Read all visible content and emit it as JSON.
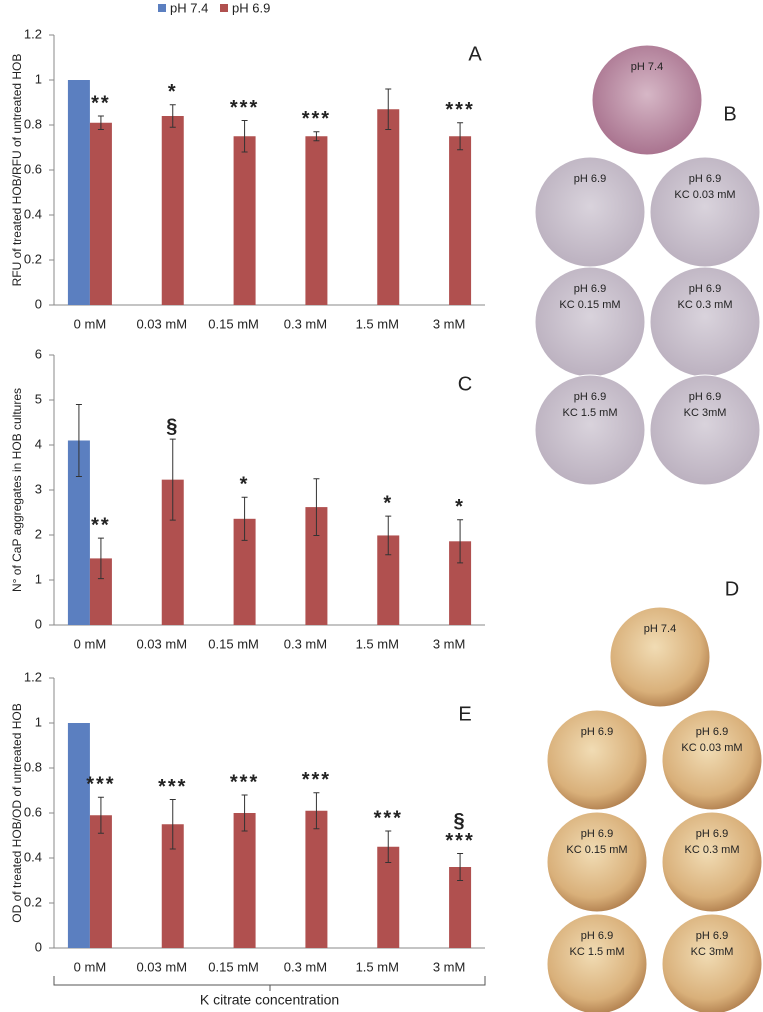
{
  "chart_data": [
    {
      "type": "bar",
      "panel_label": "A",
      "ylabel": "RFU of treated HOB/RFU of untreated HOB",
      "categories": [
        "0 mM",
        "0.03 mM",
        "0.15 mM",
        "0.3 mM",
        "1.5 mM",
        "3 mM"
      ],
      "series": [
        {
          "name": "pH 7.4",
          "color": "#5b7fc0",
          "values": [
            1,
            null,
            null,
            null,
            null,
            null
          ]
        },
        {
          "name": "pH 6.9",
          "color": "#b0504f",
          "values": [
            0.81,
            0.84,
            0.75,
            0.75,
            0.87,
            0.75
          ],
          "errors": [
            0.03,
            0.05,
            0.07,
            0.02,
            0.09,
            0.06
          ]
        }
      ],
      "annotations": [
        [
          "**"
        ],
        [
          "*"
        ],
        [
          "***"
        ],
        [
          "***"
        ],
        null,
        [
          "***"
        ]
      ],
      "ylim": [
        0,
        1.2
      ],
      "yticks": [
        0,
        0.2,
        0.4,
        0.6,
        0.8,
        1,
        1.2
      ]
    },
    {
      "type": "bar",
      "panel_label": "C",
      "ylabel": "N° of CaP aggregates in HOB cultures",
      "categories": [
        "0 mM",
        "0.03 mM",
        "0.15 mM",
        "0.3 mM",
        "1.5 mM",
        "3 mM"
      ],
      "series": [
        {
          "color": "#5b7fc0",
          "values": [
            4.1,
            null,
            null,
            null,
            null,
            null
          ],
          "errors": [
            0.8,
            null,
            null,
            null,
            null,
            null
          ]
        },
        {
          "color": "#b0504f",
          "values": [
            1.48,
            3.23,
            2.36,
            2.62,
            1.99,
            1.86
          ],
          "errors": [
            0.45,
            0.9,
            0.48,
            0.63,
            0.43,
            0.48
          ]
        }
      ],
      "annotations": [
        [
          "**"
        ],
        [
          "§"
        ],
        [
          "*"
        ],
        null,
        [
          "*"
        ],
        [
          "*"
        ]
      ],
      "ylim": [
        0,
        6
      ],
      "yticks": [
        0,
        1,
        2,
        3,
        4,
        5,
        6
      ]
    },
    {
      "type": "bar",
      "panel_label": "E",
      "ylabel": "OD of treated HOB/OD of untreated HOB",
      "xlabel": "K citrate concentration",
      "categories": [
        "0 mM",
        "0.03 mM",
        "0.15 mM",
        "0.3 mM",
        "1.5 mM",
        "3 mM"
      ],
      "series": [
        {
          "color": "#5b7fc0",
          "values": [
            1,
            null,
            null,
            null,
            null,
            null
          ]
        },
        {
          "color": "#b0504f",
          "values": [
            0.59,
            0.55,
            0.6,
            0.61,
            0.45,
            0.36
          ],
          "errors": [
            0.08,
            0.11,
            0.08,
            0.08,
            0.07,
            0.06
          ]
        }
      ],
      "annotations": [
        [
          "***"
        ],
        [
          "***"
        ],
        [
          "***"
        ],
        [
          "***"
        ],
        [
          "***"
        ],
        [
          "§",
          "***"
        ]
      ],
      "ylim": [
        0,
        1.2
      ],
      "yticks": [
        0,
        0.2,
        0.4,
        0.6,
        0.8,
        1,
        1.2
      ]
    }
  ],
  "micrographs": [
    {
      "panel": "B",
      "images": [
        [
          "pH 7.4"
        ],
        [
          "pH 6.9"
        ],
        [
          "pH 6.9",
          "KC 0.03 mM"
        ],
        [
          "pH 6.9",
          "KC 0.15 mM"
        ],
        [
          "pH 6.9",
          "KC 0.3 mM"
        ],
        [
          "pH 6.9",
          "KC 1.5 mM"
        ],
        [
          "pH 6.9",
          "KC 3mM"
        ]
      ]
    },
    {
      "panel": "D",
      "images": [
        [
          "pH 7.4"
        ],
        [
          "pH 6.9"
        ],
        [
          "pH 6.9",
          "KC 0.03 mM"
        ],
        [
          "pH 6.9",
          "KC 0.15 mM"
        ],
        [
          "pH 6.9",
          "KC 0.3 mM"
        ],
        [
          "pH 6.9",
          "KC 1.5 mM"
        ],
        [
          "pH 6.9",
          "KC 3mM"
        ]
      ]
    }
  ]
}
